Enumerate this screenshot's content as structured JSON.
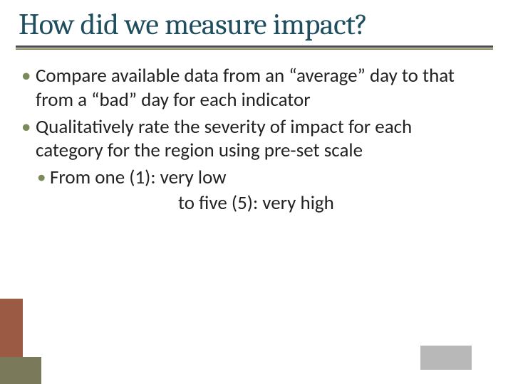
{
  "slide": {
    "title": "How did we measure impact?",
    "title_color": "#1f4e5f",
    "title_font_family": "Cambria, Georgia, serif",
    "title_fontsize": 42,
    "underline_color_top": "#4a4a4a",
    "underline_color_bottom": "#8a8a5c",
    "body_fontsize": 27,
    "body_color": "#222222",
    "bullet_color": "#7a8a5a",
    "background_color": "#ffffff",
    "bullets": [
      {
        "level": 1,
        "text": "Compare available data from an “average” day to that from a “bad” day for each indicator"
      },
      {
        "level": 1,
        "text": "Qualitatively rate the severity of impact for each category for the region using pre-set scale"
      },
      {
        "level": 2,
        "text": "From one (1): very low"
      }
    ],
    "scale_continuation": "to five (5): very high",
    "decorations": {
      "brown_block": "#9b5a43",
      "olive_block": "#7a7a5a",
      "gray_block": "#b8b8b8"
    }
  }
}
